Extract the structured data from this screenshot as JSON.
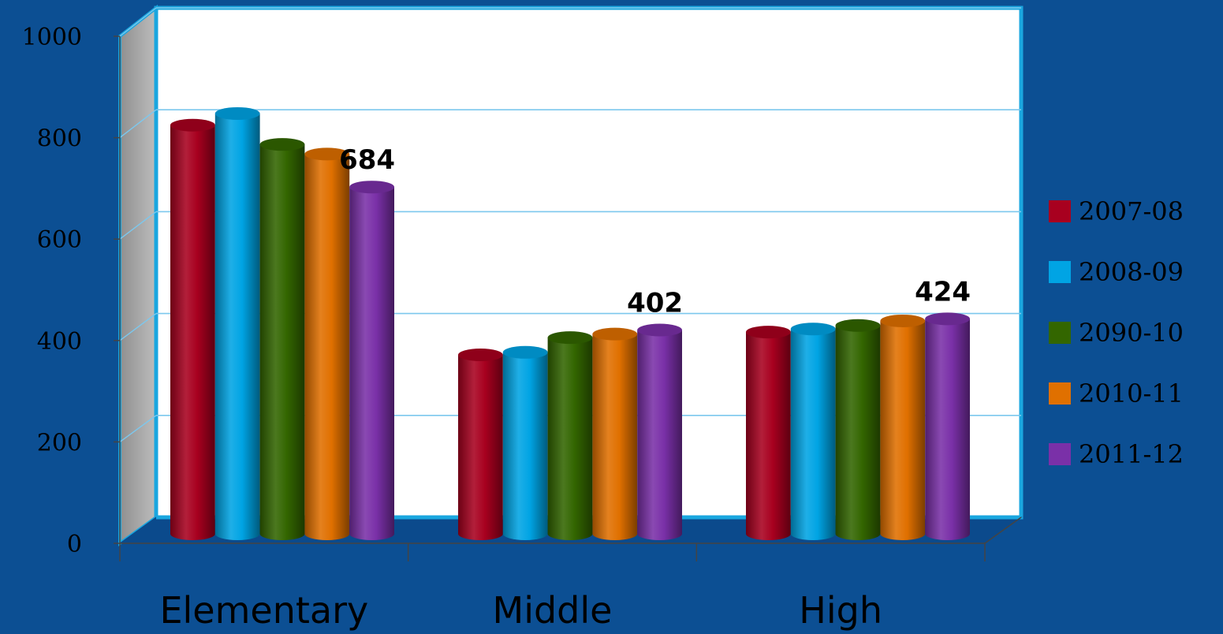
{
  "chart_data": {
    "type": "bar",
    "style": "3d-cylinder",
    "title": "",
    "xlabel": "",
    "ylabel": "",
    "categories": [
      "Elementary",
      "Middle",
      "High"
    ],
    "ylim": [
      0,
      1000
    ],
    "yticks": [
      0,
      200,
      400,
      600,
      800,
      1000
    ],
    "grid": true,
    "legend_position": "right",
    "series": [
      {
        "name": "2007-08",
        "color": "#a8001f",
        "values": [
          806,
          353,
          398
        ]
      },
      {
        "name": "2008-09",
        "color": "#00a4e4",
        "values": [
          829,
          358,
          404
        ]
      },
      {
        "name": "2090-10",
        "color": "#336600",
        "values": [
          768,
          387,
          411
        ]
      },
      {
        "name": "2010-11",
        "color": "#e07000",
        "values": [
          749,
          394,
          420
        ]
      },
      {
        "name": "2011-12",
        "color": "#7a30a8",
        "values": [
          684,
          402,
          424
        ]
      }
    ],
    "data_labels": [
      {
        "category": "Elementary",
        "series": "2011-12",
        "text": "684"
      },
      {
        "category": "Middle",
        "series": "2011-12",
        "text": "402"
      },
      {
        "category": "High",
        "series": "2011-12",
        "text": "424"
      }
    ]
  }
}
